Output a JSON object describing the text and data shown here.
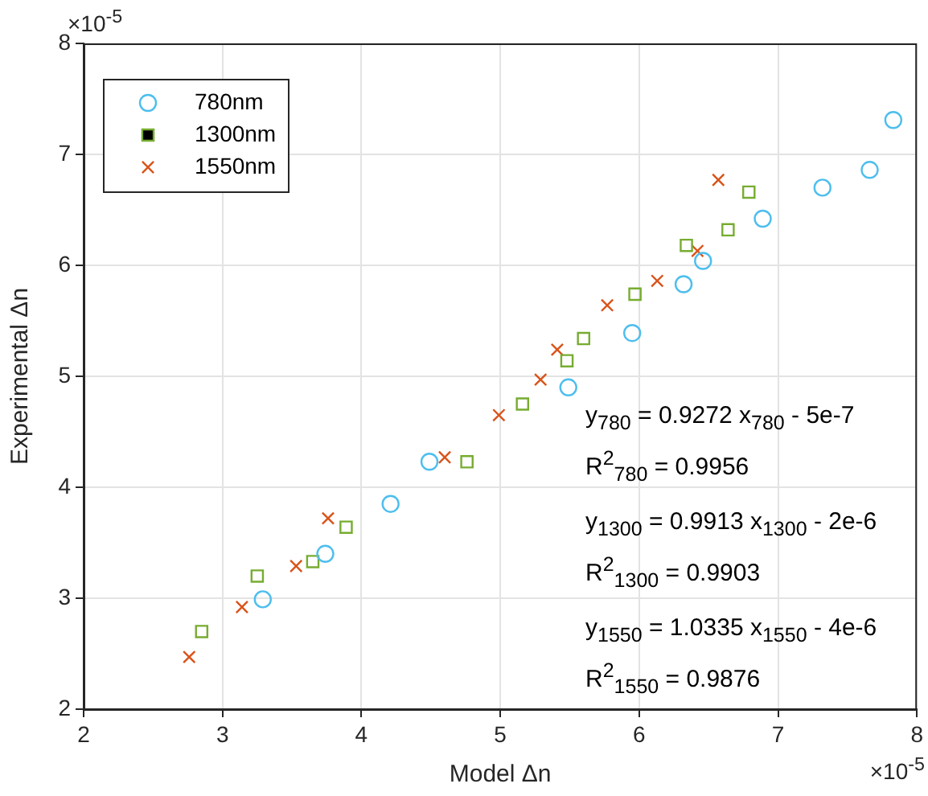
{
  "chart_data": {
    "type": "scatter",
    "xlabel": "Model Δn",
    "ylabel": "Experimental Δn",
    "xlim": [
      2,
      8
    ],
    "xticks": [
      2,
      3,
      4,
      5,
      6,
      7,
      8
    ],
    "ylim": [
      2,
      8
    ],
    "yticks": [
      2,
      3,
      4,
      5,
      6,
      7,
      8
    ],
    "grid": true,
    "legend": "top left",
    "series": [
      {
        "name": "780nm",
        "color": "#4dbeee",
        "marker": "circle",
        "x": [
          3.29,
          3.74,
          4.21,
          4.49,
          5.49,
          5.95,
          6.32,
          6.46,
          6.89,
          7.32,
          7.66,
          7.83
        ],
        "values": [
          2.99,
          3.4,
          3.85,
          4.23,
          4.9,
          5.39,
          5.83,
          6.04,
          6.42,
          6.7,
          6.86,
          7.31
        ]
      },
      {
        "name": "1300nm",
        "color": "#77ac30",
        "marker": "square",
        "x": [
          2.85,
          3.25,
          3.65,
          3.89,
          4.76,
          5.16,
          5.48,
          5.6,
          5.97,
          6.34,
          6.64,
          6.79
        ],
        "values": [
          2.7,
          3.2,
          3.33,
          3.64,
          4.23,
          4.75,
          5.14,
          5.34,
          5.74,
          6.18,
          6.32,
          6.66
        ]
      },
      {
        "name": "1550nm",
        "color": "#d95319",
        "marker": "cross",
        "x": [
          2.76,
          3.14,
          3.53,
          3.76,
          4.6,
          4.99,
          5.29,
          5.41,
          5.77,
          6.13,
          6.42,
          6.57
        ],
        "values": [
          2.47,
          2.92,
          3.29,
          3.72,
          4.27,
          4.65,
          4.97,
          5.24,
          5.64,
          5.86,
          6.13,
          6.77
        ]
      }
    ],
    "annotations": [
      "×10$^{-5}$",
      "×10$^{-5}$",
      "y$_{780}$ = 0.9272 x$_{780}$ - 5e-7",
      "R$^{2}$$_{780}$ = 0.9956",
      "y$_{1300}$ = 0.9913 x$_{1300}$ - 2e-6",
      "R$^{2}$$_{1300}$ = 0.9903",
      "y$_{1550}$ = 1.0335 x$_{1550}$ - 4e-6",
      "R$^{2}$$_{1550}$ = 0.9876"
    ]
  }
}
